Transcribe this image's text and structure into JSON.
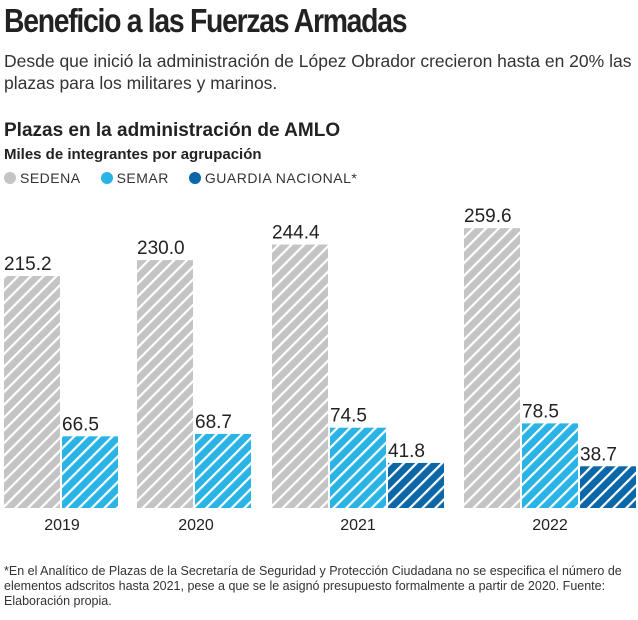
{
  "header": {
    "title": "Beneficio a las Fuerzas Armadas",
    "subtitle": "Desde que inició la administración de López Obrador crecieron hasta en 20% las plazas para los militares y marinos."
  },
  "chart_data": {
    "type": "bar",
    "title": "Plazas en la administración de AMLO",
    "ylabel": "Miles de integrantes por agrupación",
    "categories": [
      "2019",
      "2020",
      "2021",
      "2022"
    ],
    "series": [
      {
        "name": "SEDENA",
        "color": "#c4c4c4",
        "values": [
          215.2,
          230.0,
          244.4,
          259.6
        ]
      },
      {
        "name": "SEMAR",
        "color": "#2ab4e6",
        "values": [
          66.5,
          68.7,
          74.5,
          78.5
        ]
      },
      {
        "name": "GUARDIA NACIONAL*",
        "color": "#0b67a6",
        "values": [
          null,
          null,
          41.8,
          38.7
        ]
      }
    ],
    "legend": "top-left",
    "grid": false
  },
  "footnote": "*En el Analítico de Plazas de la Secretaría de Seguridad y Protección Ciudadana no se especifica el número de elementos adscritos hasta 2021, pese a que se le asignó presupuesto formalmente a partir de 2020. Fuente: Elaboración propia."
}
